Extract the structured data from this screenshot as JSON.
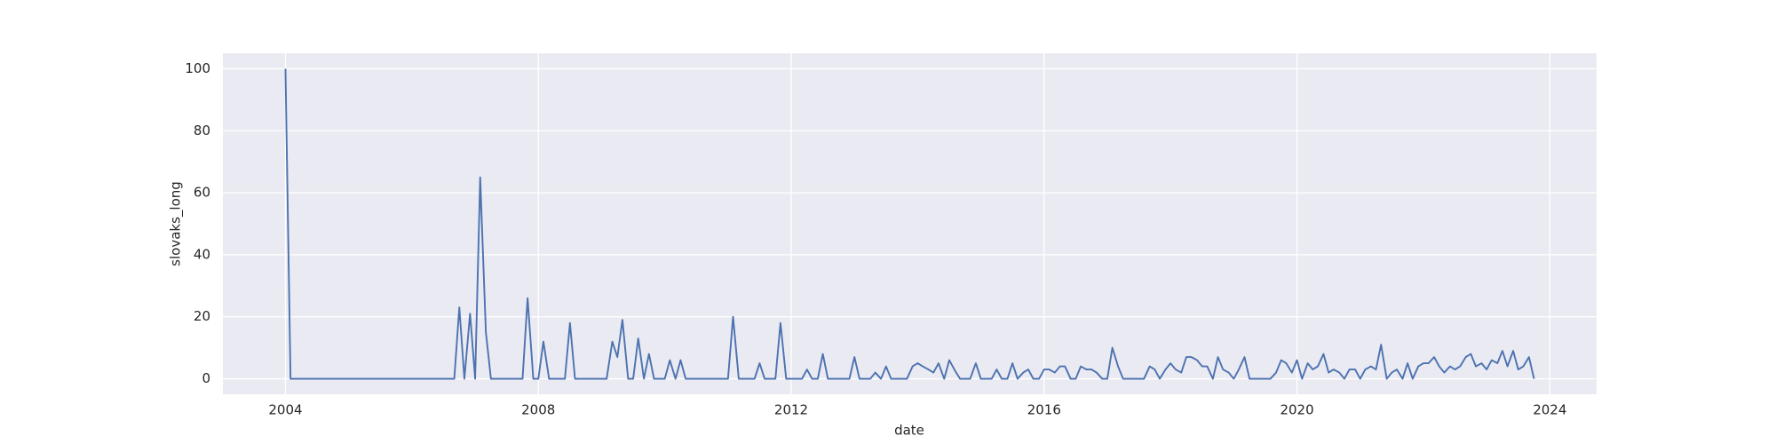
{
  "chart_data": {
    "type": "line",
    "x_label": "date",
    "y_label": "slovaks_long",
    "x": [
      2004,
      2004.08,
      2004.17,
      2004.25,
      2004.33,
      2004.42,
      2004.5,
      2004.58,
      2004.67,
      2004.75,
      2004.83,
      2004.92,
      2005,
      2005.08,
      2005.17,
      2005.25,
      2005.33,
      2005.42,
      2005.5,
      2005.58,
      2005.67,
      2005.75,
      2005.83,
      2005.92,
      2006,
      2006.08,
      2006.17,
      2006.25,
      2006.33,
      2006.42,
      2006.5,
      2006.58,
      2006.67,
      2006.75,
      2006.83,
      2006.92,
      2007,
      2007.08,
      2007.17,
      2007.25,
      2007.33,
      2007.42,
      2007.5,
      2007.58,
      2007.67,
      2007.75,
      2007.83,
      2007.92,
      2008,
      2008.08,
      2008.17,
      2008.25,
      2008.33,
      2008.42,
      2008.5,
      2008.58,
      2008.67,
      2008.75,
      2008.83,
      2008.92,
      2009,
      2009.08,
      2009.17,
      2009.25,
      2009.33,
      2009.42,
      2009.5,
      2009.58,
      2009.67,
      2009.75,
      2009.83,
      2009.92,
      2010,
      2010.08,
      2010.17,
      2010.25,
      2010.33,
      2010.42,
      2010.5,
      2010.58,
      2010.67,
      2010.75,
      2010.83,
      2010.92,
      2011,
      2011.08,
      2011.17,
      2011.25,
      2011.33,
      2011.42,
      2011.5,
      2011.58,
      2011.67,
      2011.75,
      2011.83,
      2011.92,
      2012,
      2012.08,
      2012.17,
      2012.25,
      2012.33,
      2012.42,
      2012.5,
      2012.58,
      2012.67,
      2012.75,
      2012.83,
      2012.92,
      2013,
      2013.08,
      2013.17,
      2013.25,
      2013.33,
      2013.42,
      2013.5,
      2013.58,
      2013.67,
      2013.75,
      2013.83,
      2013.92,
      2014,
      2014.08,
      2014.17,
      2014.25,
      2014.33,
      2014.42,
      2014.5,
      2014.58,
      2014.67,
      2014.75,
      2014.83,
      2014.92,
      2015,
      2015.08,
      2015.17,
      2015.25,
      2015.33,
      2015.42,
      2015.5,
      2015.58,
      2015.67,
      2015.75,
      2015.83,
      2015.92,
      2016,
      2016.08,
      2016.17,
      2016.25,
      2016.33,
      2016.42,
      2016.5,
      2016.58,
      2016.67,
      2016.75,
      2016.83,
      2016.92,
      2017,
      2017.08,
      2017.17,
      2017.25,
      2017.33,
      2017.42,
      2017.5,
      2017.58,
      2017.67,
      2017.75,
      2017.83,
      2017.92,
      2018,
      2018.08,
      2018.17,
      2018.25,
      2018.33,
      2018.42,
      2018.5,
      2018.58,
      2018.67,
      2018.75,
      2018.83,
      2018.92,
      2019,
      2019.08,
      2019.17,
      2019.25,
      2019.33,
      2019.42,
      2019.5,
      2019.58,
      2019.67,
      2019.75,
      2019.83,
      2019.92,
      2020,
      2020.08,
      2020.17,
      2020.25,
      2020.33,
      2020.42,
      2020.5,
      2020.58,
      2020.67,
      2020.75,
      2020.83,
      2020.92,
      2021,
      2021.08,
      2021.17,
      2021.25,
      2021.33,
      2021.42,
      2021.5,
      2021.58,
      2021.67,
      2021.75,
      2021.83,
      2021.92,
      2022,
      2022.08,
      2022.17,
      2022.25,
      2022.33,
      2022.42,
      2022.5,
      2022.58,
      2022.67,
      2022.75,
      2022.83,
      2022.92,
      2023,
      2023.08,
      2023.17,
      2023.25,
      2023.33,
      2023.42,
      2023.5,
      2023.58,
      2023.67,
      2023.75
    ],
    "values": [
      100,
      0,
      0,
      0,
      0,
      0,
      0,
      0,
      0,
      0,
      0,
      0,
      0,
      0,
      0,
      0,
      0,
      0,
      0,
      0,
      0,
      0,
      0,
      0,
      0,
      0,
      0,
      0,
      0,
      0,
      0,
      0,
      0,
      23,
      0,
      21,
      0,
      65,
      15,
      0,
      0,
      0,
      0,
      0,
      0,
      0,
      26,
      0,
      0,
      12,
      0,
      0,
      0,
      0,
      18,
      0,
      0,
      0,
      0,
      0,
      0,
      0,
      12,
      7,
      19,
      0,
      0,
      13,
      0,
      8,
      0,
      0,
      0,
      6,
      0,
      6,
      0,
      0,
      0,
      0,
      0,
      0,
      0,
      0,
      0,
      20,
      0,
      0,
      0,
      0,
      5,
      0,
      0,
      0,
      18,
      0,
      0,
      0,
      0,
      3,
      0,
      0,
      8,
      0,
      0,
      0,
      0,
      0,
      7,
      0,
      0,
      0,
      2,
      0,
      4,
      0,
      0,
      0,
      0,
      4,
      5,
      4,
      3,
      2,
      5,
      0,
      6,
      3,
      0,
      0,
      0,
      5,
      0,
      0,
      0,
      3,
      0,
      0,
      5,
      0,
      2,
      3,
      0,
      0,
      3,
      3,
      2,
      4,
      4,
      0,
      0,
      4,
      3,
      3,
      2,
      0,
      0,
      10,
      4,
      0,
      0,
      0,
      0,
      0,
      4,
      3,
      0,
      3,
      5,
      3,
      2,
      7,
      7,
      6,
      4,
      4,
      0,
      7,
      3,
      2,
      0,
      3,
      7,
      0,
      0,
      0,
      0,
      0,
      2,
      6,
      5,
      2,
      6,
      0,
      5,
      3,
      4,
      8,
      2,
      3,
      2,
      0,
      3,
      3,
      0,
      3,
      4,
      3,
      11,
      0,
      2,
      3,
      0,
      5,
      0,
      4,
      5,
      5,
      7,
      4,
      2,
      4,
      3,
      4,
      7,
      8,
      4,
      5,
      3,
      6,
      5,
      9,
      4,
      9,
      3,
      4,
      7,
      0
    ],
    "color": "#4c72b0",
    "xlim": [
      2003.01,
      2024.74
    ],
    "xticks": [
      2004,
      2008,
      2012,
      2016,
      2020,
      2024
    ],
    "ylim": [
      -5,
      105
    ],
    "yticks": [
      0,
      20,
      40,
      60,
      80,
      100
    ],
    "grid": true
  }
}
